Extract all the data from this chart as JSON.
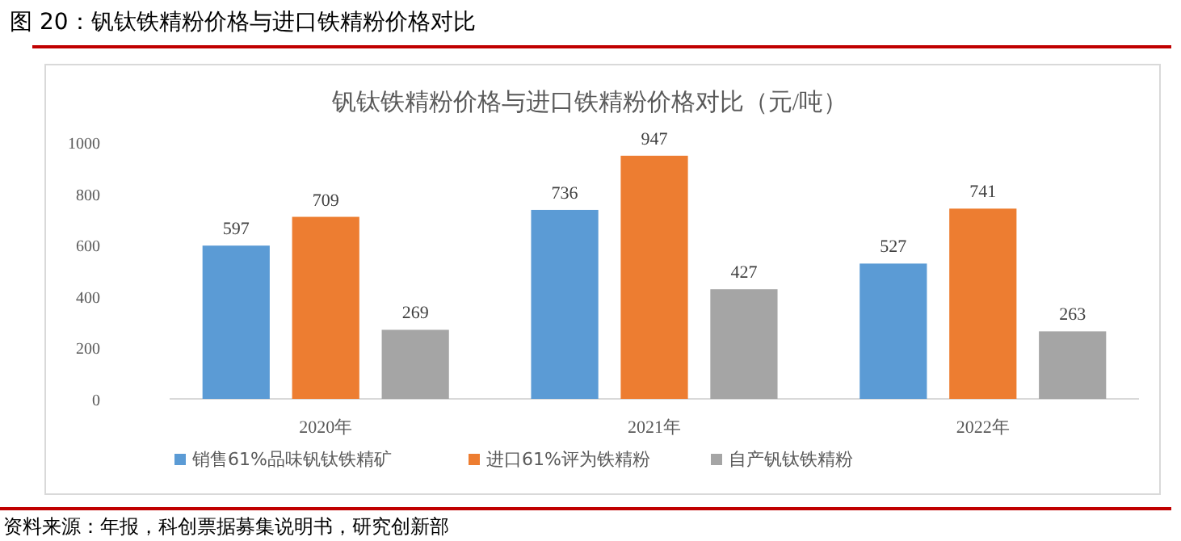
{
  "chart_data": {
    "type": "bar",
    "title": "图 20：钒钛铁精粉价格与进口铁精粉价格对比",
    "subtitle": "钒钛铁精粉价格与进口铁精粉价格对比（元/吨）",
    "categories": [
      "2020年",
      "2021年",
      "2022年"
    ],
    "series": [
      {
        "name": "销售61%品味钒钛铁精矿",
        "color": "#5b9bd5",
        "values": [
          597,
          736,
          527
        ]
      },
      {
        "name": "进口61%评为铁精粉",
        "color": "#ed7d31",
        "values": [
          709,
          947,
          741
        ]
      },
      {
        "name": "自产钒钛铁精粉",
        "color": "#a5a5a5",
        "values": [
          269,
          427,
          263
        ]
      }
    ],
    "ylim": [
      0,
      1000
    ],
    "yticks": [
      0,
      200,
      400,
      600,
      800,
      1000
    ],
    "grid": false,
    "legend": "bottom",
    "data_labels": true,
    "annotations": [
      "资料来源：年报，科创票据募集说明书，研究创新部"
    ]
  }
}
